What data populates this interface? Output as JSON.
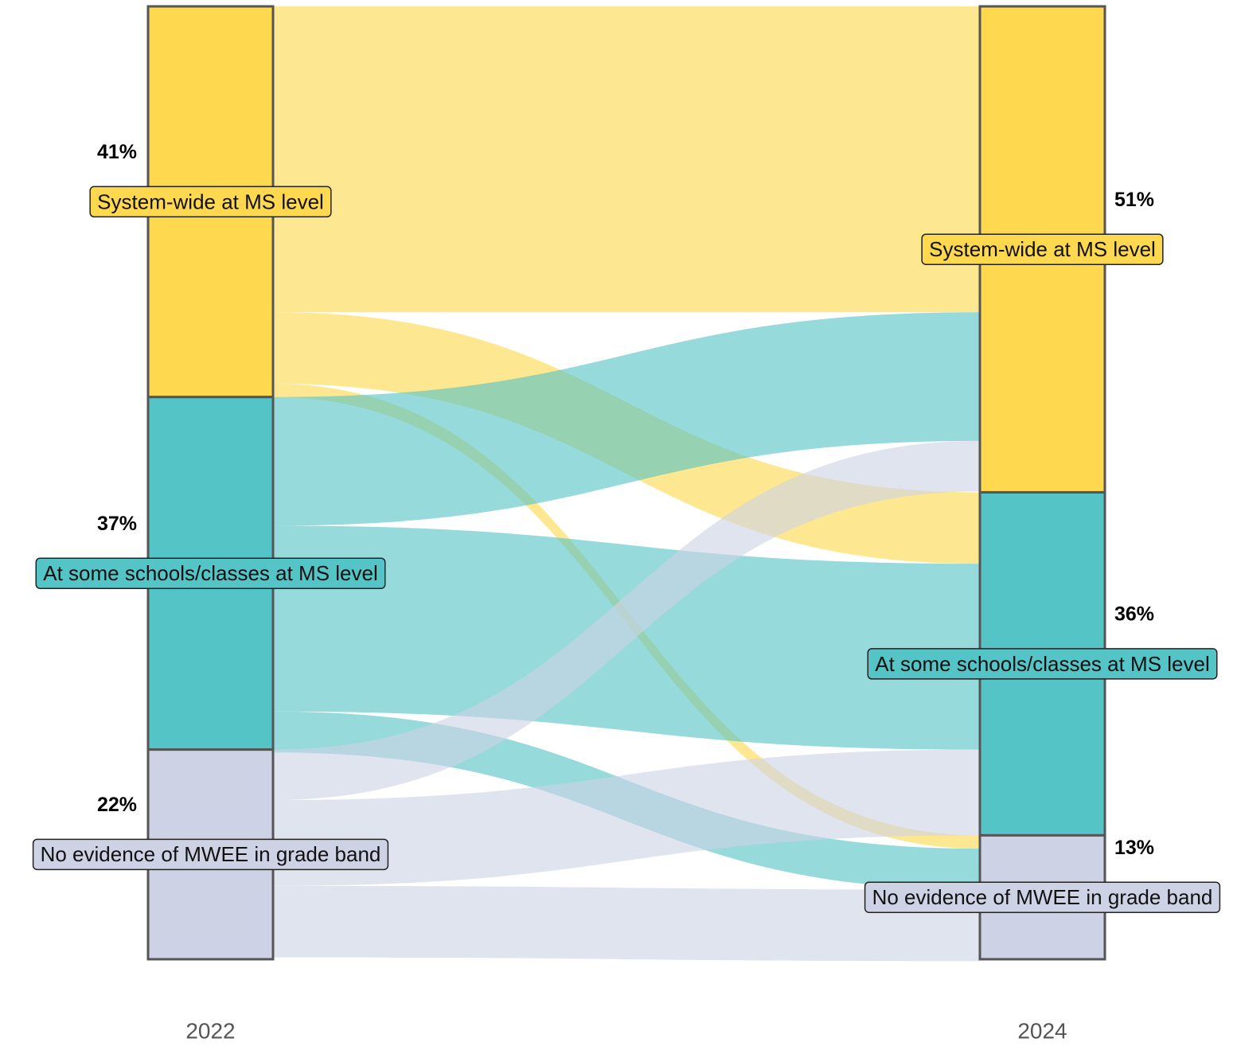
{
  "chart_data": {
    "type": "sankey",
    "colors": [
      "#FED84E",
      "#55C4C7",
      "#CDD3E5"
    ],
    "stages": [
      {
        "label": "2022",
        "nodes": [
          {
            "name": "System-wide at MS level",
            "value": 41,
            "value_label": "41%"
          },
          {
            "name": "At some schools/classes at MS level",
            "value": 37,
            "value_label": "37%"
          },
          {
            "name": "No evidence of MWEE in grade band",
            "value": 22,
            "value_label": "22%"
          }
        ]
      },
      {
        "label": "2024",
        "nodes": [
          {
            "name": "System-wide at MS level",
            "value": 51,
            "value_label": "51%"
          },
          {
            "name": "At some schools/classes at MS level",
            "value": 36,
            "value_label": "36%"
          },
          {
            "name": "No evidence of MWEE in grade band",
            "value": 13,
            "value_label": "13%"
          }
        ]
      }
    ],
    "flows": [
      {
        "from": 0,
        "to": 0,
        "value": 32.1
      },
      {
        "from": 0,
        "to": 1,
        "value": 7.5
      },
      {
        "from": 0,
        "to": 2,
        "value": 1.4
      },
      {
        "from": 1,
        "to": 0,
        "value": 13.5
      },
      {
        "from": 1,
        "to": 1,
        "value": 19.5
      },
      {
        "from": 1,
        "to": 2,
        "value": 4.3
      },
      {
        "from": 2,
        "to": 0,
        "value": 5.3
      },
      {
        "from": 2,
        "to": 1,
        "value": 9.0
      },
      {
        "from": 2,
        "to": 2,
        "value": 7.5
      }
    ]
  }
}
